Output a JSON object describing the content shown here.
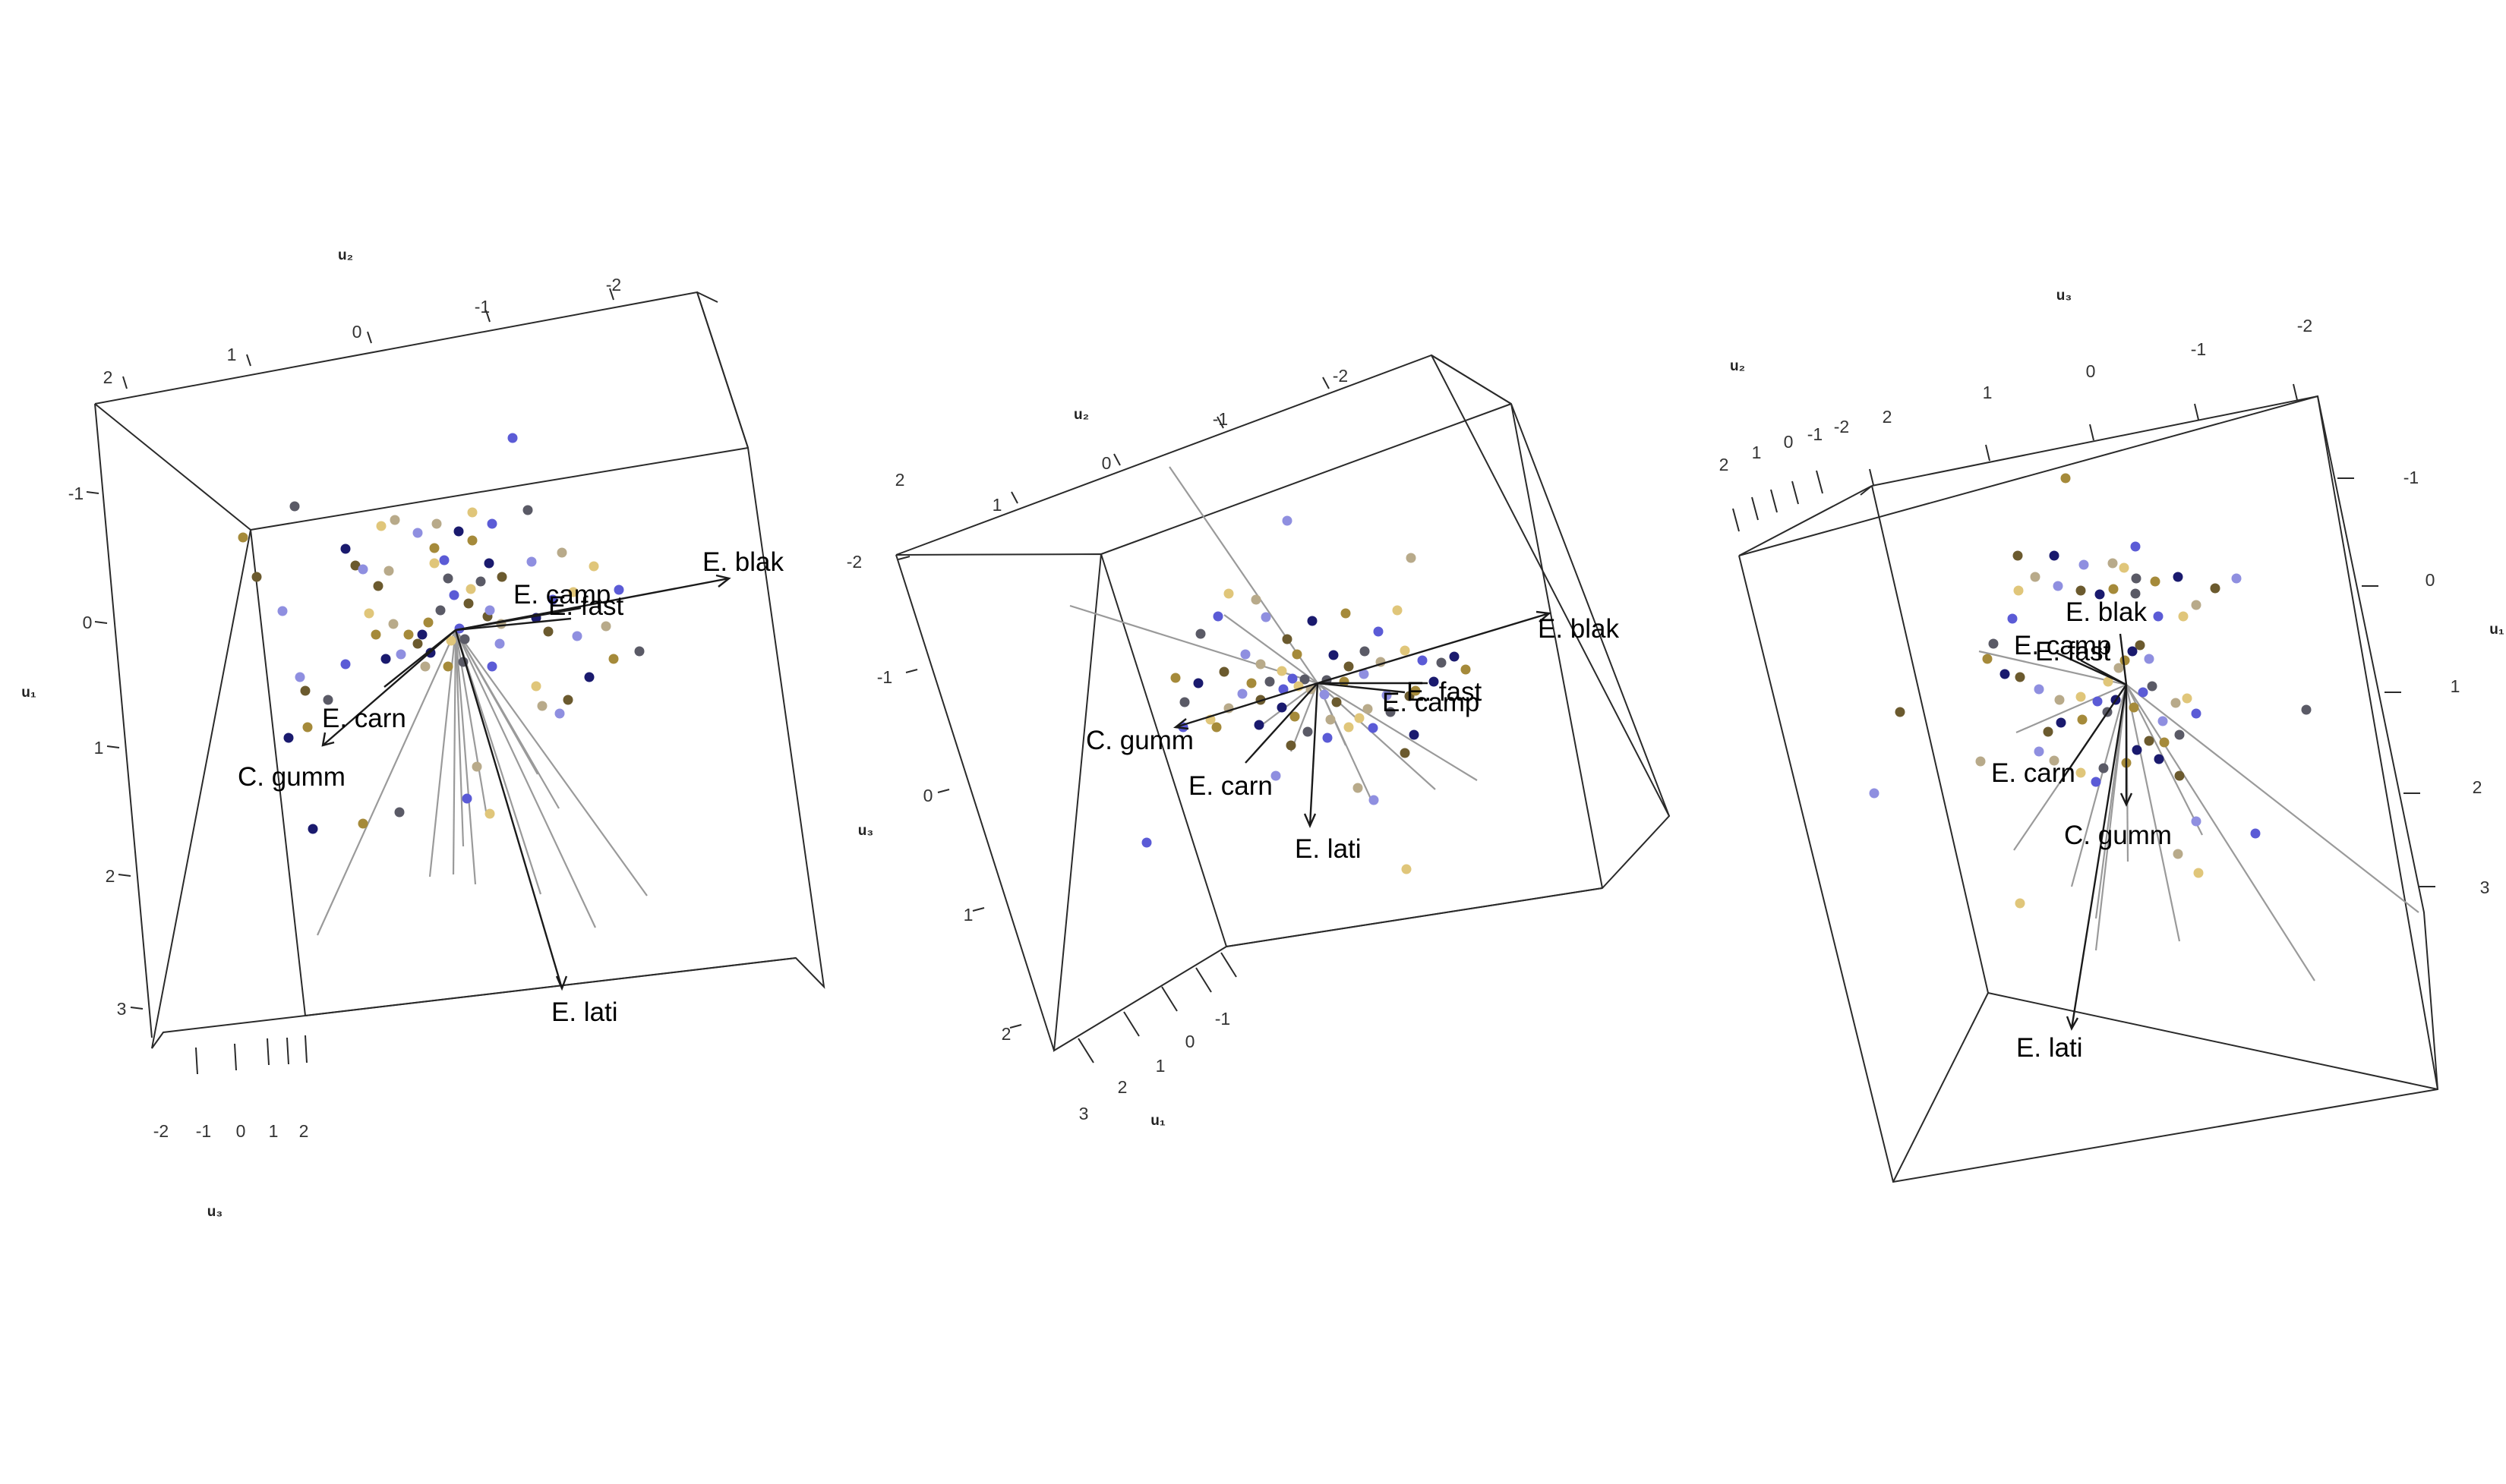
{
  "chart_data": [
    {
      "type": "scatter",
      "panel": 1,
      "axes": {
        "u1": "u₁",
        "u2": "u₂",
        "u3": "u₃"
      },
      "tick_labels": {
        "u2": [
          "2",
          "1",
          "0",
          "-1",
          "-2"
        ],
        "u1": [
          "-1",
          "0",
          "1",
          "2",
          "3"
        ],
        "u3": [
          "-2",
          "-1",
          "0",
          "1",
          "2"
        ]
      },
      "biplot_vectors": [
        "E. blak",
        "E. camp",
        "E. fast",
        "E. carn",
        "C. gumm",
        "E. lati"
      ],
      "point_colors": [
        "#1a1a6e",
        "#5b5bd6",
        "#8f8fe0",
        "#a58a3a",
        "#e0c67a",
        "#6b5a2e",
        "#5a5a66",
        "#b8aa8a"
      ]
    },
    {
      "type": "scatter",
      "panel": 2,
      "axes": {
        "u1": "u₁",
        "u2": "u₂",
        "u3": "u₃"
      },
      "tick_labels": {
        "u2": [
          "2",
          "1",
          "0",
          "-1",
          "-2"
        ],
        "u3": [
          "-2",
          "-1",
          "0",
          "1",
          "2"
        ],
        "u1": [
          "3",
          "2",
          "1",
          "0",
          "-1"
        ]
      },
      "biplot_vectors": [
        "E. blak",
        "E. fast",
        "E. camp",
        "C. gumm",
        "E. carn",
        "E. lati"
      ],
      "point_colors": [
        "#1a1a6e",
        "#5b5bd6",
        "#8f8fe0",
        "#a58a3a",
        "#e0c67a",
        "#6b5a2e",
        "#5a5a66",
        "#b8aa8a"
      ]
    },
    {
      "type": "scatter",
      "panel": 3,
      "axes": {
        "u1": "u₁",
        "u2": "u₂",
        "u3": "u₃"
      },
      "tick_labels": {
        "u3": [
          "2",
          "1",
          "0",
          "-1",
          "-2"
        ],
        "u2": [
          "2",
          "1",
          "0",
          "-1",
          "-2"
        ],
        "u1": [
          "-1",
          "0",
          "1",
          "2",
          "3"
        ]
      },
      "biplot_vectors": [
        "E. blak",
        "E. camp",
        "E. fast",
        "E. carn",
        "C. gumm",
        "E. lati"
      ],
      "point_colors": [
        "#1a1a6e",
        "#5b5bd6",
        "#8f8fe0",
        "#a58a3a",
        "#e0c67a",
        "#6b5a2e",
        "#5a5a66",
        "#b8aa8a"
      ]
    }
  ]
}
